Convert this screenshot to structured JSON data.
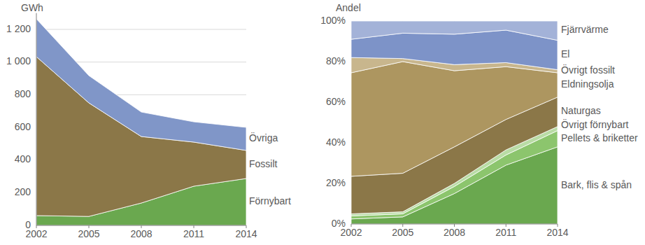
{
  "chart_data": [
    {
      "type": "area",
      "stacked": true,
      "grid": true,
      "y_label": "GWh",
      "x": [
        2002,
        2005,
        2008,
        2011,
        2014
      ],
      "xlim": [
        2002,
        2014
      ],
      "xticks": [
        2002,
        2005,
        2008,
        2011,
        2014
      ],
      "ylim": [
        0,
        1300
      ],
      "yticks": [
        0,
        200,
        400,
        600,
        800,
        {
          "value": 1000,
          "label": "1 000"
        },
        {
          "value": 1200,
          "label": "1 200"
        }
      ],
      "series": [
        {
          "name": "Förnybart",
          "color": "#6aa84f",
          "values": [
            60,
            55,
            137,
            240,
            287
          ]
        },
        {
          "name": "Fossilt",
          "color": "#8b7748",
          "values": [
            973,
            695,
            407,
            270,
            172
          ]
        },
        {
          "name": "Övriga",
          "color": "#8096c8",
          "values": [
            231,
            167,
            150,
            124,
            141
          ]
        }
      ]
    },
    {
      "type": "area",
      "stacked": true,
      "grid": false,
      "y_label": "Andel",
      "x": [
        2002,
        2005,
        2008,
        2011,
        2014
      ],
      "xlim": [
        2002,
        2014
      ],
      "xticks": [
        2002,
        2005,
        2008,
        2011,
        2014
      ],
      "ylim": [
        0,
        100
      ],
      "yticks": [
        {
          "value": 0,
          "label": "0%"
        },
        {
          "value": 20,
          "label": "20%"
        },
        {
          "value": 40,
          "label": "40%"
        },
        {
          "value": 60,
          "label": "60%"
        },
        {
          "value": 80,
          "label": "80%"
        },
        {
          "value": 100,
          "label": "100%"
        }
      ],
      "series": [
        {
          "name": "Bark, flis & spån",
          "color": "#6aa84f",
          "values": [
            2.5,
            3.5,
            15,
            29,
            38
          ]
        },
        {
          "name": "Pellets & briketter",
          "color": "#8cc56d",
          "values": [
            1.5,
            1.5,
            3.5,
            5,
            8
          ]
        },
        {
          "name": "Övrigt förnybart",
          "color": "#b9dca5",
          "values": [
            1,
            1,
            1.5,
            2.5,
            2
          ]
        },
        {
          "name": "Naturgas",
          "color": "#8b7748",
          "values": [
            18.5,
            19,
            18,
            15,
            14.5
          ]
        },
        {
          "name": "Eldningsolja",
          "color": "#ad9660",
          "values": [
            51,
            55,
            37.5,
            26,
            12
          ]
        },
        {
          "name": "Övrigt fossilt",
          "color": "#c8b68d",
          "values": [
            7.5,
            1.5,
            3,
            2,
            1.5
          ]
        },
        {
          "name": "El",
          "color": "#7d93c8",
          "values": [
            9,
            12.5,
            15,
            16,
            14.5
          ]
        },
        {
          "name": "Fjärrvärme",
          "color": "#a3b2d8",
          "values": [
            9,
            6,
            6.5,
            4.5,
            9.5
          ]
        }
      ]
    }
  ]
}
